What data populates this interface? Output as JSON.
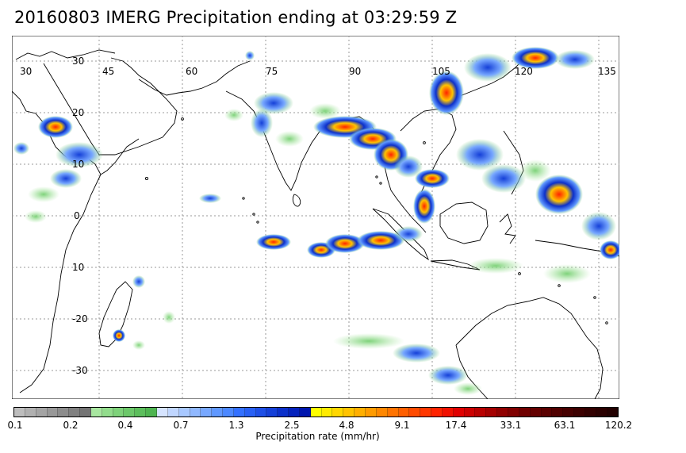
{
  "title": "20160803 IMERG Precipitation ending at 03:29:59 Z",
  "map": {
    "lon_labels": [
      "30",
      "45",
      "60",
      "75",
      "90",
      "105",
      "120",
      "135"
    ],
    "lat_labels": [
      "30",
      "20",
      "10",
      "0",
      "10",
      "-20",
      "-30"
    ],
    "land_outline_color": "#000000",
    "grid_color": "#9a9a9a"
  },
  "colorbar": {
    "tick_labels": [
      "0.1",
      "0.2",
      "0.4",
      "0.7",
      "1.3",
      "2.5",
      "4.8",
      "9.1",
      "17.4",
      "33.1",
      "63.1",
      "120.2"
    ],
    "label": "Precipitation rate (mm/hr)",
    "colors": [
      "#bdbdbd",
      "#b0b0b0",
      "#a4a4a4",
      "#989898",
      "#8c8c8c",
      "#808080",
      "#747474",
      "#a8e6a0",
      "#92dc8c",
      "#7ed27a",
      "#6cc86a",
      "#5cbe5c",
      "#4eb450",
      "#d6e4ff",
      "#c0d6ff",
      "#a8c8ff",
      "#90b8ff",
      "#78a8ff",
      "#6098ff",
      "#4c88ff",
      "#3370ff",
      "#2860f4",
      "#1e4fe6",
      "#1540d8",
      "#0c30ca",
      "#0522bc",
      "#0016ae",
      "#ffff00",
      "#ffeb00",
      "#ffd700",
      "#ffc300",
      "#ffaf00",
      "#ff9b00",
      "#ff8700",
      "#ff7300",
      "#ff5f00",
      "#ff4b00",
      "#ff3700",
      "#ff2300",
      "#f01000",
      "#e00000",
      "#cc0000",
      "#b80000",
      "#a40000",
      "#900000",
      "#800000",
      "#700000",
      "#640000",
      "#5a0000",
      "#500000",
      "#460000",
      "#3c0000",
      "#320000",
      "#2a0000",
      "#220000"
    ]
  }
}
